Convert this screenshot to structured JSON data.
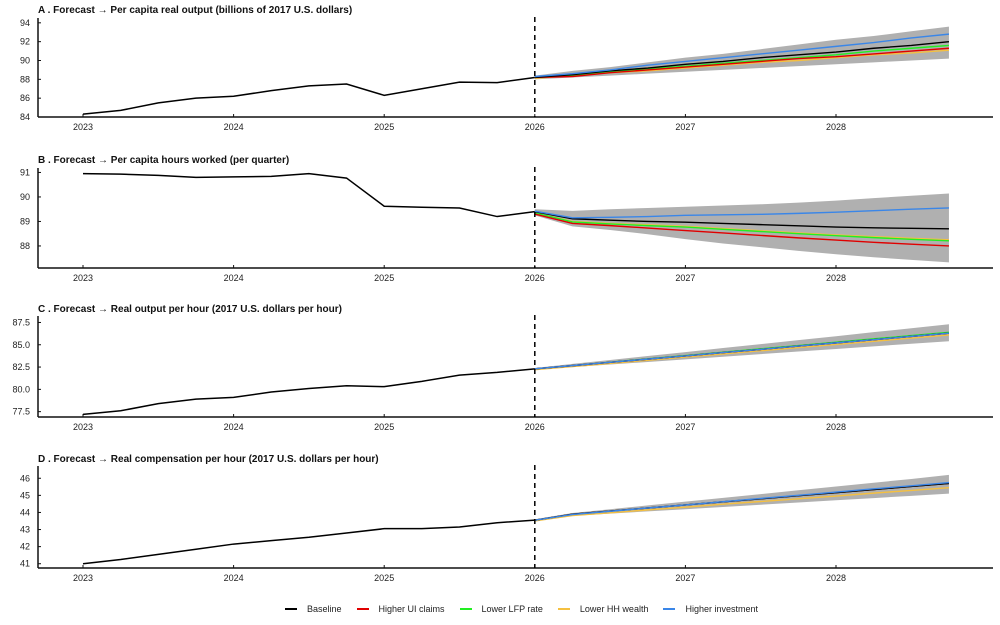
{
  "chart_data": [
    {
      "type": "line",
      "title": "A . Forecast → Per capita real output (billions of 2017 U.S. dollars)",
      "ylim": [
        84,
        94.3
      ],
      "yticks": [
        "84",
        "86",
        "88",
        "90",
        "92",
        "94"
      ],
      "ytick_values": [
        84,
        86,
        88,
        90,
        92,
        94
      ],
      "history": [
        84.3,
        84.7,
        85.5,
        86.0,
        86.2,
        86.8,
        87.3,
        87.5,
        86.3,
        87.0,
        87.7,
        87.65,
        88.2
      ],
      "forecast": {
        "Baseline": [
          88.2,
          88.5,
          88.9,
          89.2,
          89.6,
          89.9,
          90.3,
          90.6,
          90.9,
          91.3,
          91.6,
          92.0
        ],
        "Higher UI claims": [
          88.2,
          88.3,
          88.7,
          89.0,
          89.3,
          89.6,
          89.9,
          90.2,
          90.4,
          90.7,
          91.0,
          91.3
        ],
        "Lower LFP rate": [
          88.2,
          88.4,
          88.8,
          89.1,
          89.4,
          89.7,
          90.0,
          90.3,
          90.6,
          91.0,
          91.3,
          91.6
        ],
        "Lower HH wealth": [
          88.1,
          88.4,
          88.7,
          88.9,
          89.2,
          89.5,
          89.8,
          90.0,
          90.3,
          90.6,
          90.8,
          91.1
        ],
        "Higher investment": [
          88.3,
          88.6,
          89.0,
          89.5,
          89.9,
          90.3,
          90.7,
          91.1,
          91.5,
          91.9,
          92.4,
          92.8
        ]
      },
      "band_upper": [
        88.4,
        88.9,
        89.3,
        89.8,
        90.3,
        90.7,
        91.2,
        91.7,
        92.2,
        92.6,
        93.1,
        93.6
      ],
      "band_lower": [
        88.0,
        88.2,
        88.4,
        88.6,
        88.8,
        89.0,
        89.2,
        89.4,
        89.6,
        89.8,
        90.0,
        90.2
      ]
    },
    {
      "type": "line",
      "title": "B . Forecast → Per capita hours worked (per quarter)",
      "ylim": [
        87.1,
        91.1
      ],
      "yticks": [
        "88",
        "89",
        "90",
        "91"
      ],
      "ytick_values": [
        88,
        89,
        90,
        91
      ],
      "history": [
        90.95,
        90.93,
        90.88,
        90.8,
        90.82,
        90.84,
        90.95,
        90.77,
        89.62,
        89.58,
        89.55,
        89.2,
        89.4
      ],
      "forecast": {
        "Baseline": [
          89.4,
          89.11,
          89.05,
          89.0,
          88.97,
          88.92,
          88.87,
          88.82,
          88.77,
          88.74,
          88.72,
          88.7
        ],
        "Higher UI claims": [
          89.3,
          88.92,
          88.83,
          88.73,
          88.63,
          88.53,
          88.43,
          88.33,
          88.24,
          88.15,
          88.07,
          88.0
        ],
        "Lower LFP rate": [
          89.35,
          88.98,
          88.9,
          88.83,
          88.77,
          88.68,
          88.59,
          88.5,
          88.42,
          88.34,
          88.27,
          88.21
        ],
        "Lower HH wealth": [
          89.35,
          89.0,
          88.92,
          88.86,
          88.8,
          88.71,
          88.62,
          88.53,
          88.45,
          88.38,
          88.31,
          88.25
        ],
        "Higher investment": [
          89.42,
          89.15,
          89.17,
          89.2,
          89.25,
          89.27,
          89.29,
          89.33,
          89.38,
          89.44,
          89.5,
          89.55
        ]
      },
      "band_upper": [
        89.5,
        89.43,
        89.5,
        89.55,
        89.6,
        89.65,
        89.7,
        89.77,
        89.85,
        89.95,
        90.05,
        90.14
      ],
      "band_lower": [
        89.25,
        88.8,
        88.65,
        88.48,
        88.28,
        88.1,
        87.95,
        87.8,
        87.66,
        87.54,
        87.43,
        87.33
      ]
    },
    {
      "type": "line",
      "title": "C . Forecast → Real output per hour (2017 U.S. dollars per hour)",
      "ylim": [
        76.9,
        88.0
      ],
      "yticks": [
        "77.5",
        "80.0",
        "82.5",
        "85.0",
        "87.5"
      ],
      "ytick_values": [
        77.5,
        80,
        82.5,
        85,
        87.5
      ],
      "history": [
        77.2,
        77.6,
        78.4,
        78.9,
        79.1,
        79.7,
        80.1,
        80.4,
        80.3,
        80.9,
        81.6,
        81.9,
        82.3
      ],
      "forecast": {
        "Baseline": [
          82.3,
          82.66,
          83.03,
          83.39,
          83.75,
          84.12,
          84.48,
          84.85,
          85.21,
          85.57,
          85.94,
          86.3
        ],
        "Higher UI claims": [
          82.3,
          82.66,
          83.03,
          83.39,
          83.75,
          84.12,
          84.48,
          84.85,
          85.21,
          85.57,
          85.94,
          86.3
        ],
        "Lower LFP rate": [
          82.3,
          82.67,
          83.05,
          83.42,
          83.79,
          84.17,
          84.54,
          84.91,
          85.28,
          85.66,
          86.03,
          86.4
        ],
        "Lower HH wealth": [
          82.2,
          82.55,
          82.91,
          83.26,
          83.62,
          83.97,
          84.33,
          84.68,
          85.04,
          85.39,
          85.75,
          86.1
        ],
        "Higher investment": [
          82.3,
          82.66,
          83.03,
          83.39,
          83.75,
          84.12,
          84.48,
          84.85,
          85.21,
          85.57,
          85.94,
          86.3
        ]
      },
      "band_upper": [
        82.4,
        82.85,
        83.29,
        83.74,
        84.18,
        84.63,
        85.07,
        85.52,
        85.96,
        86.41,
        86.85,
        87.3
      ],
      "band_lower": [
        82.2,
        82.49,
        82.78,
        83.07,
        83.36,
        83.65,
        83.95,
        84.24,
        84.53,
        84.82,
        85.11,
        85.4
      ]
    },
    {
      "type": "line",
      "title": "D . Forecast → Real compensation per hour (2017 U.S. dollars per hour)",
      "ylim": [
        40.75,
        46.6
      ],
      "yticks": [
        "41",
        "42",
        "43",
        "44",
        "45",
        "46"
      ],
      "ytick_values": [
        41,
        42,
        43,
        44,
        45,
        46
      ],
      "history": [
        41.0,
        41.25,
        41.55,
        41.85,
        42.15,
        42.35,
        42.55,
        42.8,
        43.05,
        43.05,
        43.15,
        43.4,
        43.55
      ],
      "forecast": {
        "Baseline": [
          43.55,
          43.9,
          44.08,
          44.26,
          44.44,
          44.62,
          44.8,
          44.98,
          45.16,
          45.34,
          45.52,
          45.7
        ],
        "Higher UI claims": [
          43.55,
          43.9,
          44.08,
          44.26,
          44.44,
          44.62,
          44.8,
          44.98,
          45.16,
          45.34,
          45.52,
          45.7
        ],
        "Lower LFP rate": [
          43.55,
          43.9,
          44.08,
          44.26,
          44.44,
          44.62,
          44.8,
          44.98,
          45.16,
          45.34,
          45.52,
          45.7
        ],
        "Lower HH wealth": [
          43.5,
          43.82,
          43.98,
          44.15,
          44.31,
          44.48,
          44.64,
          44.8,
          44.96,
          45.13,
          45.29,
          45.45
        ],
        "Higher investment": [
          43.55,
          43.88,
          44.07,
          44.26,
          44.44,
          44.63,
          44.82,
          45.0,
          45.19,
          45.38,
          45.56,
          45.75
        ]
      },
      "band_upper": [
        43.6,
        43.97,
        44.19,
        44.41,
        44.63,
        44.85,
        45.07,
        45.3,
        45.52,
        45.74,
        45.96,
        46.2
      ],
      "band_lower": [
        43.5,
        43.8,
        43.93,
        44.06,
        44.19,
        44.32,
        44.45,
        44.58,
        44.71,
        44.84,
        44.97,
        45.1
      ]
    }
  ],
  "shared": {
    "xticks": [
      "2023",
      "2024",
      "2025",
      "2026",
      "2027",
      "2028"
    ],
    "history_start": 2023,
    "forecast_start": 2026,
    "step_years": 0.25,
    "band_color": "#b0b0b0",
    "grid": false
  },
  "legend": {
    "position": "bottom-center",
    "items": [
      {
        "label": "Baseline",
        "color": "#000000"
      },
      {
        "label": "Higher UI claims",
        "color": "#e00000"
      },
      {
        "label": "Lower LFP rate",
        "color": "#22ee22"
      },
      {
        "label": "Lower HH wealth",
        "color": "#f5c040"
      },
      {
        "label": "Higher investment",
        "color": "#3a86e8"
      }
    ]
  }
}
